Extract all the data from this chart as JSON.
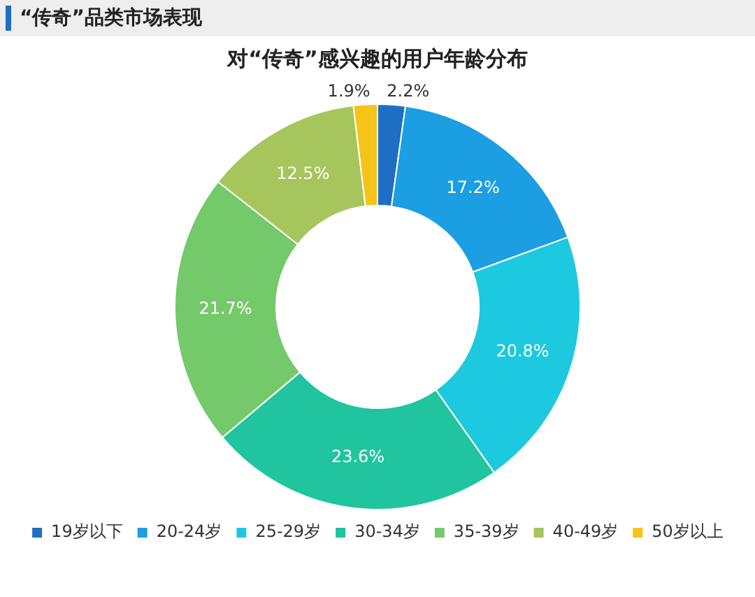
{
  "chart_data": {
    "type": "donut",
    "title": "“传奇”品类市场表现",
    "subtitle": "对“传奇”感兴趣的用户年龄分布",
    "categories": [
      "19岁以下",
      "20-24岁",
      "25-29岁",
      "30-34岁",
      "35-39岁",
      "40-49岁",
      "50岁以上"
    ],
    "values": [
      2.2,
      17.2,
      20.8,
      23.6,
      21.7,
      12.5,
      1.9
    ],
    "colors": [
      "#1e6fc4",
      "#1b9ee2",
      "#1cc9de",
      "#20c49e",
      "#74c96a",
      "#a6c55c",
      "#f6c318"
    ],
    "value_labels": [
      "2.2%",
      "17.2%",
      "20.8%",
      "23.6%",
      "21.7%",
      "12.5%",
      "1.9%"
    ],
    "legend": "bottom"
  }
}
